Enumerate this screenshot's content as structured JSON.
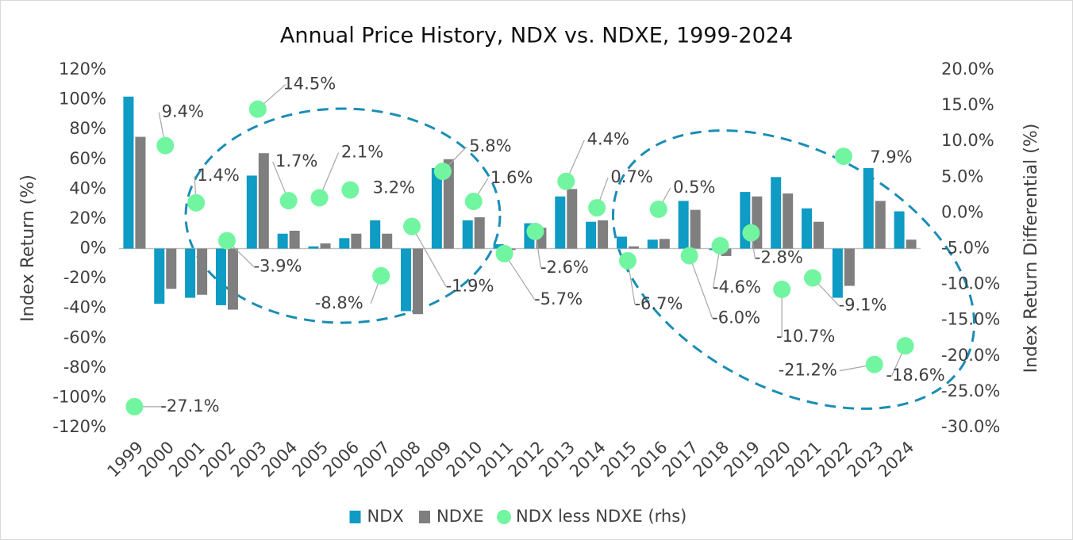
{
  "chart_data": {
    "type": "bar_scatter",
    "title": "Annual Price History, NDX vs. NDXE, 1999-2024",
    "y_label": "Index Return (%)",
    "y2_label": "Index Return Differential (%)",
    "categories": [
      "1999",
      "2000",
      "2001",
      "2002",
      "2003",
      "2004",
      "2005",
      "2006",
      "2007",
      "2008",
      "2009",
      "2010",
      "2011",
      "2012",
      "2013",
      "2014",
      "2015",
      "2016",
      "2017",
      "2018",
      "2019",
      "2020",
      "2021",
      "2022",
      "2023",
      "2024"
    ],
    "series": [
      {
        "name": "NDX",
        "type": "bar",
        "color": "#0e9bc4",
        "values": [
          102,
          -37,
          -33,
          -38,
          49,
          10,
          1.5,
          7,
          19,
          -42,
          54,
          19,
          3,
          17,
          35,
          18,
          8,
          6,
          32,
          -1,
          38,
          48,
          27,
          -33,
          54,
          25
        ]
      },
      {
        "name": "NDXE",
        "type": "bar",
        "color": "#7f7f7f",
        "values": [
          75,
          -27,
          -31,
          -41,
          64,
          12,
          3.5,
          10,
          10,
          -44,
          60,
          21,
          -1,
          14,
          40,
          19,
          1.5,
          6.5,
          26,
          -5,
          35,
          37,
          18,
          -25,
          32,
          6
        ]
      },
      {
        "name": "NDX less NDXE (rhs)",
        "type": "scatter",
        "axis": "y2",
        "color": "#72f5a0",
        "values": [
          -27.1,
          9.4,
          1.4,
          -3.9,
          14.5,
          1.7,
          2.1,
          3.2,
          -8.8,
          -1.9,
          5.8,
          1.6,
          -5.7,
          -2.6,
          4.4,
          0.7,
          -6.7,
          0.5,
          -6.0,
          -4.6,
          -2.8,
          -10.7,
          -9.1,
          7.9,
          -21.2,
          -18.6
        ],
        "value_labels": [
          "-27.1%",
          "9.4%",
          "1.4%",
          "-3.9%",
          "14.5%",
          "1.7%",
          "2.1%",
          "3.2%",
          "-8.8%",
          "-1.9%",
          "5.8%",
          "1.6%",
          "-5.7%",
          "-2.6%",
          "4.4%",
          "0.7%",
          "-6.7%",
          "0.5%",
          "-6.0%",
          "-4.6%",
          "-2.8%",
          "-10.7%",
          "-9.1%",
          "7.9%",
          "-21.2%",
          "-18.6%"
        ]
      }
    ],
    "ylim": [
      -120,
      120
    ],
    "yticks": [
      {
        "value": 120,
        "label": "120%"
      },
      {
        "value": 100,
        "label": "100%"
      },
      {
        "value": 80,
        "label": "80%"
      },
      {
        "value": 60,
        "label": "60%"
      },
      {
        "value": 40,
        "label": "40%"
      },
      {
        "value": 20,
        "label": "20%"
      },
      {
        "value": 0,
        "label": "0%"
      },
      {
        "value": -20,
        "label": "-20%"
      },
      {
        "value": -40,
        "label": "-40%"
      },
      {
        "value": -60,
        "label": "-60%"
      },
      {
        "value": -80,
        "label": "-80%"
      },
      {
        "value": -100,
        "label": "-100%"
      },
      {
        "value": -120,
        "label": "-120%"
      }
    ],
    "y2lim": [
      -30,
      20
    ],
    "y2ticks": [
      {
        "value": 20,
        "label": "20.0%"
      },
      {
        "value": 15,
        "label": "15.0%"
      },
      {
        "value": 10,
        "label": "10.0%"
      },
      {
        "value": 5,
        "label": "5.0%"
      },
      {
        "value": 0,
        "label": "0.0%"
      },
      {
        "value": -5,
        "label": "-5.0%"
      },
      {
        "value": -10,
        "label": "-10.0%"
      },
      {
        "value": -15,
        "label": "-15.0%"
      },
      {
        "value": -20,
        "label": "-20.0%"
      },
      {
        "value": -25,
        "label": "-25.0%"
      },
      {
        "value": -30,
        "label": "-30.0%"
      }
    ],
    "legend": "bottom"
  }
}
